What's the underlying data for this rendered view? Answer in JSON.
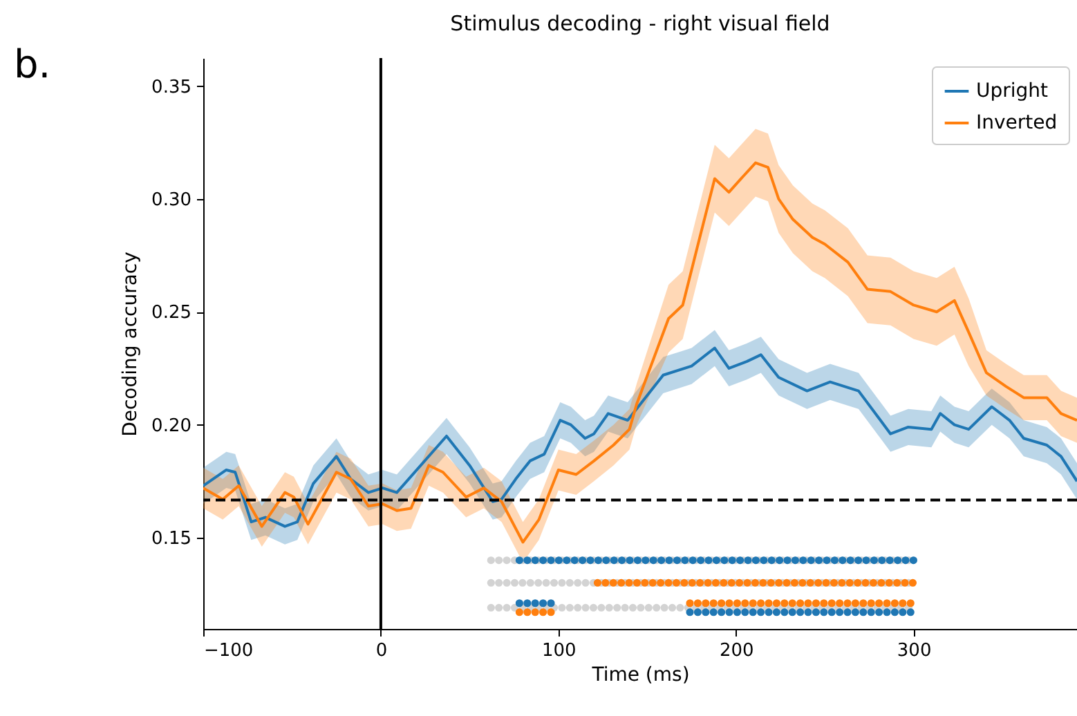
{
  "chart_data": {
    "type": "line",
    "title": "Stimulus decoding - right visual field",
    "xlabel": "Time (ms)",
    "ylabel": "Decoding accuracy",
    "annotations": [
      "b."
    ],
    "xlim": [
      -100,
      392
    ],
    "xticks": [
      {
        "value": -100,
        "label": "−100"
      },
      0,
      100,
      200,
      300
    ],
    "ylim": [
      0.1096,
      0.3624
    ],
    "yticks": [
      {
        "value": 0.15,
        "label": "0.15"
      },
      {
        "value": 0.2,
        "label": "0.20"
      },
      {
        "value": 0.25,
        "label": "0.25"
      },
      {
        "value": 0.3,
        "label": "0.30"
      },
      {
        "value": 0.35,
        "label": "0.35"
      }
    ],
    "grid": false,
    "legend": "top right",
    "line_style": "solid",
    "ref_lines": [
      {
        "axis": "x",
        "value": 0,
        "color": "#000000",
        "line_style": "solid"
      },
      {
        "axis": "y",
        "value": 0.1667,
        "color": "#000000",
        "line_style": "dashed"
      }
    ],
    "series": [
      {
        "name": "Upright",
        "color": "#1f77b4",
        "x": [
          -100,
          -87,
          -82,
          -73,
          -65,
          -54,
          -47,
          -38,
          -25,
          -17,
          -7,
          1,
          9,
          37,
          50,
          63,
          68,
          76,
          84,
          92,
          101,
          107,
          115,
          120,
          128,
          139,
          159,
          175,
          188,
          196,
          206,
          214,
          224,
          240,
          253,
          269,
          287,
          297,
          310,
          315,
          323,
          331,
          344,
          354,
          362,
          375,
          383,
          392
        ],
        "values": [
          0.173,
          0.18,
          0.179,
          0.157,
          0.159,
          0.155,
          0.157,
          0.174,
          0.186,
          0.176,
          0.17,
          0.172,
          0.17,
          0.195,
          0.182,
          0.166,
          0.167,
          0.176,
          0.184,
          0.187,
          0.202,
          0.2,
          0.194,
          0.196,
          0.205,
          0.202,
          0.222,
          0.226,
          0.234,
          0.225,
          0.228,
          0.231,
          0.221,
          0.215,
          0.219,
          0.215,
          0.196,
          0.199,
          0.198,
          0.205,
          0.2,
          0.198,
          0.208,
          0.202,
          0.194,
          0.191,
          0.186,
          0.175
        ],
        "lower": [
          0.165,
          0.172,
          0.171,
          0.149,
          0.151,
          0.147,
          0.149,
          0.166,
          0.178,
          0.168,
          0.162,
          0.164,
          0.162,
          0.187,
          0.174,
          0.158,
          0.159,
          0.168,
          0.176,
          0.179,
          0.194,
          0.192,
          0.186,
          0.188,
          0.197,
          0.194,
          0.214,
          0.218,
          0.226,
          0.217,
          0.22,
          0.223,
          0.213,
          0.207,
          0.211,
          0.207,
          0.188,
          0.191,
          0.19,
          0.197,
          0.192,
          0.19,
          0.2,
          0.194,
          0.186,
          0.183,
          0.178,
          0.167
        ],
        "upper": [
          0.181,
          0.188,
          0.187,
          0.165,
          0.167,
          0.163,
          0.165,
          0.182,
          0.194,
          0.184,
          0.178,
          0.18,
          0.178,
          0.203,
          0.19,
          0.174,
          0.175,
          0.184,
          0.192,
          0.195,
          0.21,
          0.208,
          0.202,
          0.204,
          0.213,
          0.21,
          0.23,
          0.234,
          0.242,
          0.233,
          0.236,
          0.239,
          0.229,
          0.223,
          0.227,
          0.223,
          0.204,
          0.207,
          0.206,
          0.213,
          0.208,
          0.206,
          0.216,
          0.21,
          0.202,
          0.199,
          0.194,
          0.183
        ]
      },
      {
        "name": "Inverted",
        "color": "#ff7f0e",
        "x": [
          -100,
          -89,
          -80,
          -67,
          -54,
          -49,
          -41,
          -25,
          -17,
          -7,
          1,
          9,
          17,
          27,
          35,
          48,
          58,
          68,
          80,
          89,
          100,
          110,
          120,
          131,
          140,
          144,
          162,
          170,
          178,
          188,
          196,
          204,
          211,
          218,
          224,
          232,
          243,
          250,
          263,
          274,
          287,
          300,
          313,
          323,
          331,
          341,
          352,
          362,
          375,
          383,
          392
        ],
        "values": [
          0.172,
          0.167,
          0.173,
          0.155,
          0.17,
          0.168,
          0.156,
          0.179,
          0.176,
          0.164,
          0.165,
          0.162,
          0.163,
          0.182,
          0.179,
          0.168,
          0.172,
          0.166,
          0.148,
          0.158,
          0.18,
          0.178,
          0.184,
          0.191,
          0.198,
          0.209,
          0.247,
          0.253,
          0.278,
          0.309,
          0.303,
          0.31,
          0.316,
          0.314,
          0.3,
          0.291,
          0.283,
          0.28,
          0.272,
          0.26,
          0.259,
          0.253,
          0.25,
          0.255,
          0.241,
          0.223,
          0.217,
          0.212,
          0.212,
          0.205,
          0.202
        ],
        "lower": [
          0.163,
          0.158,
          0.164,
          0.146,
          0.161,
          0.159,
          0.147,
          0.17,
          0.167,
          0.155,
          0.156,
          0.153,
          0.154,
          0.173,
          0.17,
          0.159,
          0.163,
          0.157,
          0.139,
          0.149,
          0.171,
          0.169,
          0.175,
          0.182,
          0.189,
          0.2,
          0.232,
          0.238,
          0.263,
          0.294,
          0.288,
          0.295,
          0.301,
          0.299,
          0.285,
          0.276,
          0.268,
          0.265,
          0.257,
          0.245,
          0.244,
          0.238,
          0.235,
          0.24,
          0.226,
          0.213,
          0.207,
          0.202,
          0.202,
          0.195,
          0.192
        ],
        "upper": [
          0.181,
          0.176,
          0.182,
          0.164,
          0.179,
          0.177,
          0.165,
          0.188,
          0.185,
          0.173,
          0.174,
          0.171,
          0.172,
          0.191,
          0.188,
          0.177,
          0.181,
          0.175,
          0.157,
          0.167,
          0.189,
          0.187,
          0.193,
          0.2,
          0.207,
          0.218,
          0.262,
          0.268,
          0.293,
          0.324,
          0.318,
          0.325,
          0.331,
          0.329,
          0.315,
          0.306,
          0.298,
          0.295,
          0.287,
          0.275,
          0.274,
          0.268,
          0.265,
          0.27,
          0.256,
          0.233,
          0.227,
          0.222,
          0.222,
          0.215,
          0.212
        ]
      },
      {
        "color": "#d3d3d3",
        "line_style": "dotted",
        "x": [
          62,
          300
        ],
        "values": [
          0.14,
          0.14
        ]
      },
      {
        "color": "#1f77b4",
        "line_style": "dotted",
        "x": [
          78,
          300
        ],
        "values": [
          0.14,
          0.14
        ]
      },
      {
        "color": "#d3d3d3",
        "line_style": "dotted",
        "x": [
          62,
          300
        ],
        "values": [
          0.13,
          0.13
        ]
      },
      {
        "color": "#ff7f0e",
        "line_style": "dotted",
        "x": [
          122,
          300
        ],
        "values": [
          0.13,
          0.13
        ]
      },
      {
        "color": "#d3d3d3",
        "line_style": "dotted",
        "x": [
          62,
          300
        ],
        "values": [
          0.119,
          0.119
        ]
      },
      {
        "color": "#1f77b4",
        "line_style": "dotted",
        "x": [
          78,
          97
        ],
        "values": [
          0.121,
          0.121
        ]
      },
      {
        "color": "#ff7f0e",
        "line_style": "dotted",
        "x": [
          78,
          97
        ],
        "values": [
          0.117,
          0.117
        ]
      },
      {
        "color": "#ff7f0e",
        "line_style": "dotted",
        "x": [
          174,
          300
        ],
        "values": [
          0.121,
          0.121
        ]
      },
      {
        "color": "#1f77b4",
        "line_style": "dotted",
        "x": [
          174,
          300
        ],
        "values": [
          0.117,
          0.117
        ]
      }
    ]
  }
}
